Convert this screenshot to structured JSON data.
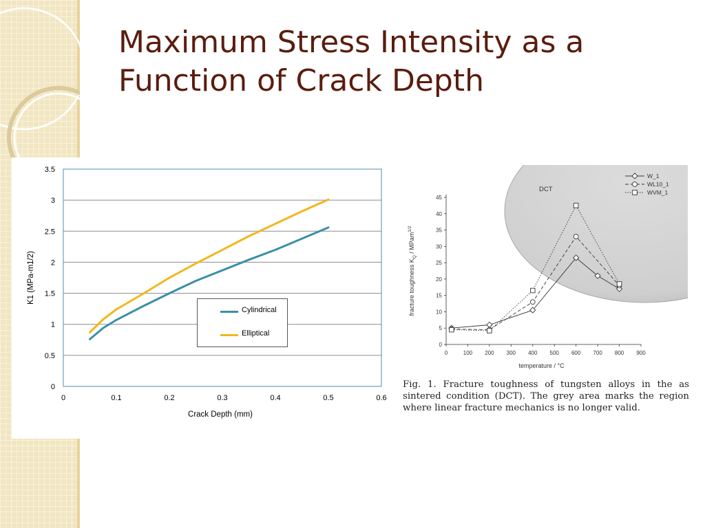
{
  "slide": {
    "title_line1": "Maximum Stress Intensity as a",
    "title_line2": "Function of Crack Depth",
    "title_color": "#5a1d0e"
  },
  "figure_caption": "Fig. 1. Fracture toughness of tungsten alloys in the as sintered condition (DCT). The grey area marks the region where linear fracture mechanics is no longer valid.",
  "chart_data": [
    {
      "type": "line",
      "title": "",
      "xlabel": "Crack Depth (mm)",
      "ylabel": "K1 (MPa-m1/2)",
      "xlim": [
        0,
        0.6
      ],
      "ylim": [
        0,
        3.5
      ],
      "x_ticks": [
        "0",
        "0.1",
        "0.2",
        "0.3",
        "0.4",
        "0.5",
        "0.6"
      ],
      "y_ticks": [
        "0",
        "0.5",
        "1",
        "1.5",
        "2",
        "2.5",
        "3",
        "3.5"
      ],
      "grid": "horizontal",
      "legend_position": "center-right",
      "series": [
        {
          "name": "Cylindrical",
          "color": "#3a8fa6",
          "x": [
            0.05,
            0.075,
            0.1,
            0.15,
            0.2,
            0.25,
            0.3,
            0.35,
            0.4,
            0.45,
            0.5
          ],
          "y": [
            0.76,
            0.94,
            1.07,
            1.29,
            1.5,
            1.7,
            1.87,
            2.04,
            2.2,
            2.38,
            2.56
          ]
        },
        {
          "name": "Elliptical",
          "color": "#f2b71e",
          "x": [
            0.05,
            0.075,
            0.1,
            0.15,
            0.2,
            0.25,
            0.3,
            0.35,
            0.4,
            0.45,
            0.5
          ],
          "y": [
            0.87,
            1.08,
            1.24,
            1.49,
            1.75,
            1.98,
            2.2,
            2.42,
            2.62,
            2.82,
            3.01
          ]
        }
      ]
    },
    {
      "type": "line",
      "title": "",
      "xlabel": "temperature / °C",
      "ylabel": "fracture toughness KQ / MPam1/2",
      "ylabel_main": "fracture toughness K",
      "ylabel_sub": "Q",
      "ylabel_unit": " / MPam",
      "ylabel_sup": "1/2",
      "xlim": [
        0,
        900
      ],
      "ylim": [
        0,
        45
      ],
      "x_ticks": [
        "0",
        "100",
        "200",
        "300",
        "400",
        "500",
        "600",
        "700",
        "800",
        "900"
      ],
      "y_ticks": [
        "0",
        "5",
        "10",
        "15",
        "20",
        "25",
        "30",
        "35",
        "40",
        "45"
      ],
      "grid": "off",
      "legend_position": "top-right",
      "region_label": "DCT",
      "series": [
        {
          "name": "W_1",
          "marker": "diamond",
          "dash": "solid",
          "x": [
            25,
            200,
            400,
            600,
            700,
            800
          ],
          "y": [
            5,
            6,
            10.5,
            26.5,
            21,
            17
          ]
        },
        {
          "name": "WL10_1",
          "marker": "circle",
          "dash": "dashed",
          "x": [
            25,
            200,
            400,
            600,
            800
          ],
          "y": [
            4.7,
            4.5,
            13,
            33,
            18
          ]
        },
        {
          "name": "WVM_1",
          "marker": "square",
          "dash": "dotted",
          "x": [
            25,
            200,
            400,
            600,
            800
          ],
          "y": [
            4.5,
            4.2,
            16.5,
            42.5,
            18.5
          ]
        }
      ]
    }
  ]
}
